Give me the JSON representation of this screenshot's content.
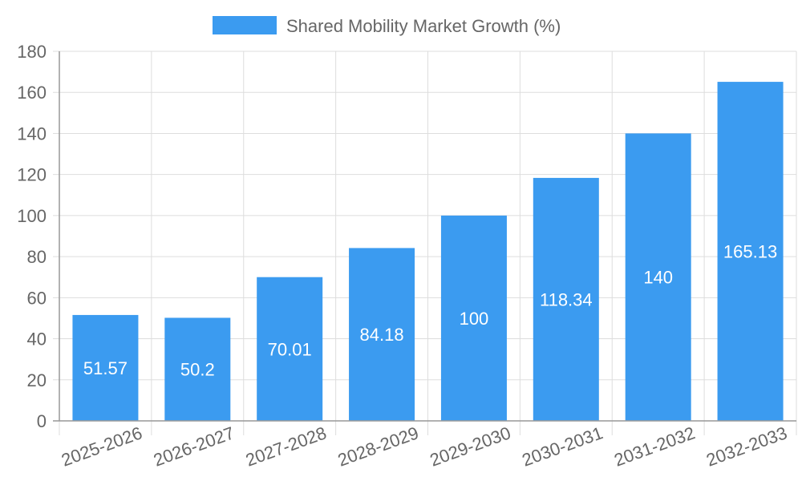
{
  "chart_data": {
    "type": "bar",
    "categories": [
      "2025-2026",
      "2026-2027",
      "2027-2028",
      "2028-2029",
      "2029-2030",
      "2030-2031",
      "2031-2032",
      "2032-2033"
    ],
    "series": [
      {
        "name": "Shared Mobility Market Growth (%)",
        "values": [
          51.57,
          50.2,
          70.01,
          84.18,
          100,
          118.34,
          140,
          165.13
        ],
        "color": "#3b9bf0"
      }
    ],
    "data_labels": [
      "51.57",
      "50.2",
      "70.01",
      "84.18",
      "100",
      "118.34",
      "140",
      "165.13"
    ],
    "y_ticks": [
      "0",
      "20",
      "40",
      "60",
      "80",
      "100",
      "120",
      "140",
      "160",
      "180"
    ],
    "ylim": [
      0,
      180
    ],
    "grid": true,
    "legend_position": "top-center",
    "xlabel": "",
    "ylabel": ""
  },
  "colors": {
    "bar": "#3b9bf0",
    "grid": "#dddddd",
    "axis": "#999999",
    "tick_text": "#666666",
    "data_label": "#ffffff"
  }
}
